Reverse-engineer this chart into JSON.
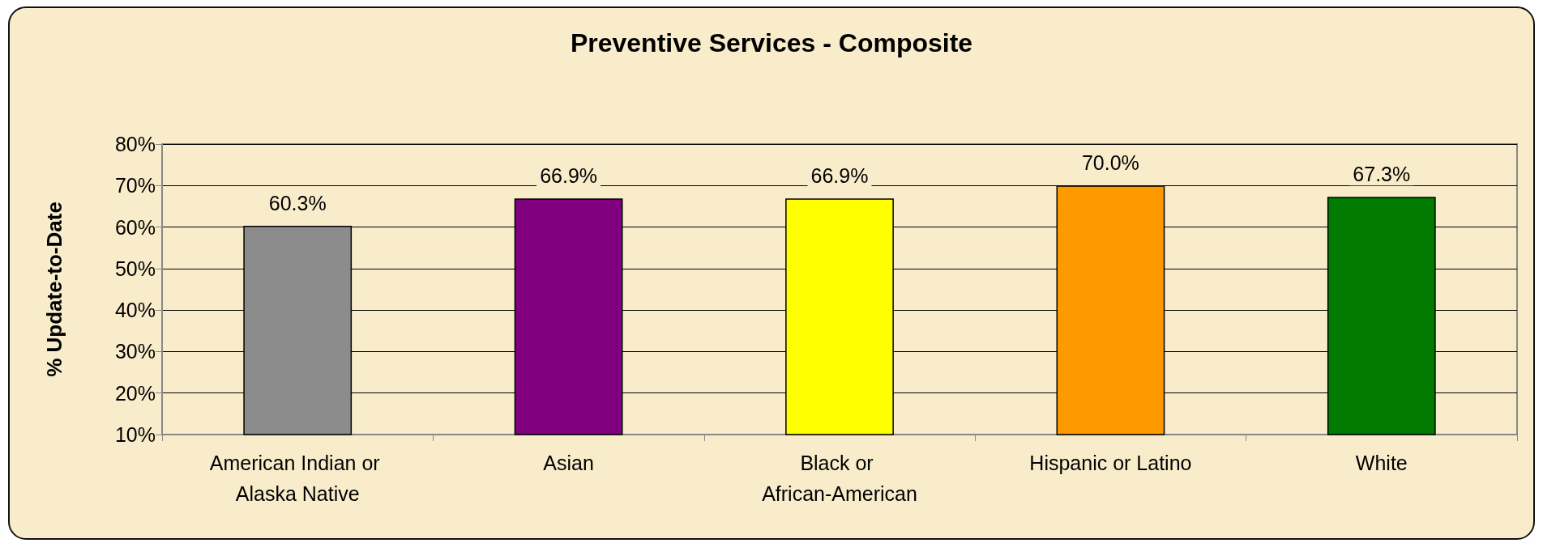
{
  "chart_data": {
    "type": "bar",
    "title": "Preventive Services - Composite",
    "ylabel": "% Update-to-Date",
    "categories": [
      "American Indian or Alaska Native",
      "Asian",
      "Black or African-American",
      "Hispanic or Latino",
      "White"
    ],
    "values": [
      60.3,
      66.9,
      66.9,
      70.0,
      67.3
    ],
    "colors": [
      "#8c8c8c",
      "#800080",
      "#ffff00",
      "#ff9900",
      "#007a00"
    ],
    "value_labels": [
      "60.3%",
      "66.9%",
      "66.9%",
      "70.0%",
      "67.3%"
    ],
    "ylim": [
      10,
      80
    ],
    "yticks": [
      {
        "value": 10,
        "label": "10%"
      },
      {
        "value": 20,
        "label": "20%"
      },
      {
        "value": 30,
        "label": "30%"
      },
      {
        "value": 40,
        "label": "40%"
      },
      {
        "value": 50,
        "label": "50%"
      },
      {
        "value": 60,
        "label": "60%"
      },
      {
        "value": 70,
        "label": "70%"
      },
      {
        "value": 80,
        "label": "80%"
      }
    ],
    "grid": "y"
  }
}
